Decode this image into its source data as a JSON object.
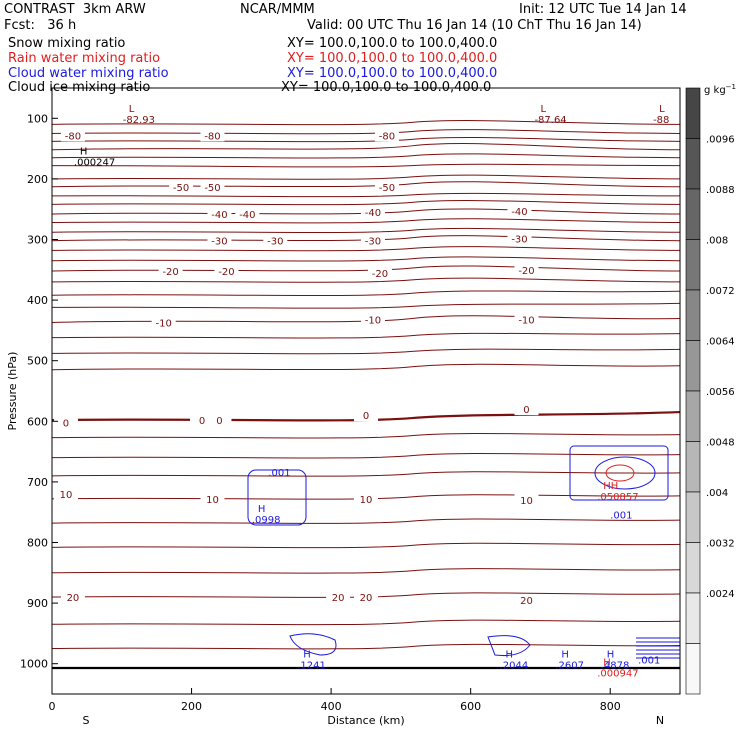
{
  "header": {
    "title_left": "CONTRAST  3km ARW",
    "title_mid": "NCAR/MMM",
    "init": "Init: 12 UTC Tue 14 Jan 14",
    "fcst": "Fcst:   36 h",
    "valid": "Valid: 00 UTC Thu 16 Jan 14 (10 ChT Thu 16 Jan 14)"
  },
  "legend": [
    {
      "label": "Snow mixing ratio",
      "xy": "XY= 100.0,100.0 to 100.0,400.0",
      "color": "#000000"
    },
    {
      "label": "Rain water mixing ratio",
      "xy": "XY= 100.0,100.0 to 100.0,400.0",
      "color": "#e02020"
    },
    {
      "label": "Cloud water mixing ratio",
      "xy": "XY= 100.0,100.0 to 100.0,400.0",
      "color": "#1a1ae0"
    },
    {
      "label": "Cloud ice mixing ratio",
      "xy": "XY= 100.0,100.0 to 100.0,400.0",
      "color": "#000000"
    }
  ],
  "colors": {
    "temp_contour": "#7a1010",
    "cloud_water": "#1a1ae0",
    "rain": "#e02020",
    "axis": "#000000"
  },
  "chart_data": {
    "type": "contour",
    "xlabel": "Distance (km)",
    "ylabel": "Pressure (hPa)",
    "xlim": [
      0,
      900
    ],
    "ylim": [
      1050,
      50
    ],
    "x_ticks": [
      0,
      200,
      400,
      600,
      800
    ],
    "y_ticks": [
      100,
      200,
      300,
      400,
      500,
      600,
      700,
      800,
      900,
      1000
    ],
    "x_end_labels": {
      "left": "S",
      "right": "N"
    },
    "colorbar": {
      "unit": "g kg",
      "unit_exp": "−1",
      "labels": [
        ".0096",
        ".0088",
        ".008",
        ".0072",
        ".0064",
        ".0056",
        ".0048",
        ".004",
        ".0032",
        ".0024"
      ]
    },
    "temperature_contour_labels": [
      {
        "text": "-80",
        "x": 30,
        "p": 128
      },
      {
        "text": "-80",
        "x": 230,
        "p": 128
      },
      {
        "text": "-80",
        "x": 480,
        "p": 128
      },
      {
        "text": "-50",
        "x": 185,
        "p": 213
      },
      {
        "text": "-50",
        "x": 230,
        "p": 213
      },
      {
        "text": "-50",
        "x": 480,
        "p": 213
      },
      {
        "text": "-40",
        "x": 240,
        "p": 258
      },
      {
        "text": "-40",
        "x": 280,
        "p": 258
      },
      {
        "text": "-40",
        "x": 460,
        "p": 255
      },
      {
        "text": "-40",
        "x": 670,
        "p": 253
      },
      {
        "text": "-30",
        "x": 240,
        "p": 302
      },
      {
        "text": "-30",
        "x": 320,
        "p": 302
      },
      {
        "text": "-30",
        "x": 460,
        "p": 302
      },
      {
        "text": "-30",
        "x": 670,
        "p": 298
      },
      {
        "text": "-20",
        "x": 170,
        "p": 352
      },
      {
        "text": "-20",
        "x": 250,
        "p": 352
      },
      {
        "text": "-20",
        "x": 470,
        "p": 355
      },
      {
        "text": "-20",
        "x": 680,
        "p": 350
      },
      {
        "text": "-10",
        "x": 160,
        "p": 437
      },
      {
        "text": "-10",
        "x": 460,
        "p": 432
      },
      {
        "text": "-10",
        "x": 680,
        "p": 432
      },
      {
        "text": "0",
        "x": 20,
        "p": 602
      },
      {
        "text": "0",
        "x": 215,
        "p": 598
      },
      {
        "text": "0",
        "x": 240,
        "p": 598
      },
      {
        "text": "0",
        "x": 450,
        "p": 590
      },
      {
        "text": "0",
        "x": 680,
        "p": 580
      },
      {
        "text": "10",
        "x": 20,
        "p": 720
      },
      {
        "text": "10",
        "x": 230,
        "p": 728
      },
      {
        "text": "10",
        "x": 450,
        "p": 728
      },
      {
        "text": "10",
        "x": 680,
        "p": 730
      },
      {
        "text": "20",
        "x": 30,
        "p": 890
      },
      {
        "text": "20",
        "x": 410,
        "p": 890
      },
      {
        "text": "20",
        "x": 450,
        "p": 890
      },
      {
        "text": "20",
        "x": 680,
        "p": 895
      }
    ],
    "extrema": [
      {
        "type": "L",
        "value": "-82.93",
        "x": 110,
        "p": 90,
        "color": "#7a1010"
      },
      {
        "type": "L",
        "value": "-87.64",
        "x": 700,
        "p": 90,
        "color": "#7a1010"
      },
      {
        "type": "L",
        "value": "-88",
        "x": 870,
        "p": 90,
        "color": "#7a1010"
      },
      {
        "type": "H",
        "value": ".000247",
        "x": 40,
        "p": 160,
        "color": "#000000"
      },
      {
        "type": "H",
        "value": ".0998",
        "x": 295,
        "p": 750,
        "color": "#1a1ae0"
      },
      {
        "type": "H",
        "value": ".1241",
        "x": 360,
        "p": 990,
        "color": "#1a1ae0"
      },
      {
        "type": "H",
        "value": ".2044",
        "x": 650,
        "p": 990,
        "color": "#1a1ae0"
      },
      {
        "type": "H",
        "value": ".2607",
        "x": 730,
        "p": 990,
        "color": "#1a1ae0"
      },
      {
        "type": "H",
        "value": ".4878",
        "x": 795,
        "p": 990,
        "color": "#1a1ae0"
      },
      {
        "type": "H",
        "value": ".000947",
        "x": 790,
        "p": 1003,
        "color": "#e02020"
      },
      {
        "type": "HH",
        "value": ".050857",
        "x": 790,
        "p": 712,
        "color": "#e02020"
      }
    ],
    "other_labels": [
      {
        "text": ".001",
        "x": 310,
        "p": 690,
        "color": "#1a1ae0"
      },
      {
        "text": ".001",
        "x": 840,
        "p": 1000,
        "color": "#1a1ae0"
      },
      {
        "text": ".001",
        "x": 800,
        "p": 760,
        "color": "#1a1ae0"
      }
    ]
  }
}
